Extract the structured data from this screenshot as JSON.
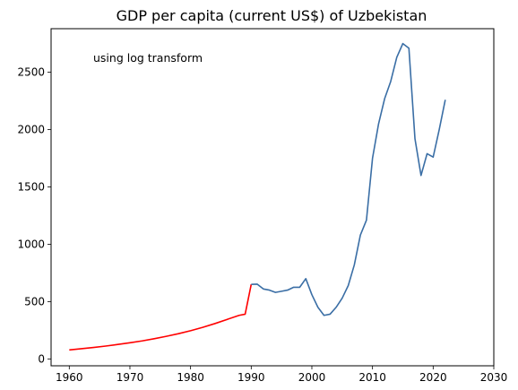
{
  "chart_data": {
    "type": "line",
    "title": "GDP per capita (current US$) of Uzbekistan",
    "annotation": "using log transform",
    "xlabel": "",
    "ylabel": "",
    "xlim": [
      1957,
      2030
    ],
    "ylim": [
      -60,
      2880
    ],
    "xticks": [
      1960,
      1970,
      1980,
      1990,
      2000,
      2010,
      2020,
      2030
    ],
    "yticks": [
      0,
      500,
      1000,
      1500,
      2000,
      2500
    ],
    "grid": false,
    "series": [
      {
        "color": "#ff0000",
        "x": [
          1960,
          1962,
          1964,
          1966,
          1968,
          1970,
          1972,
          1974,
          1976,
          1978,
          1980,
          1982,
          1984,
          1986,
          1988,
          1989,
          1990
        ],
        "y": [
          78,
          89,
          100,
          112,
          126,
          141,
          157,
          176,
          197,
          220,
          246,
          275,
          308,
          344,
          380,
          390,
          650
        ]
      },
      {
        "color": "#3a6ea5",
        "x": [
          1990,
          1991,
          1992,
          1993,
          1994,
          1995,
          1996,
          1997,
          1998,
          1999,
          2000,
          2001,
          2002,
          2003,
          2004,
          2005,
          2006,
          2007,
          2008,
          2009,
          2010,
          2011,
          2012,
          2013,
          2014,
          2015,
          2016,
          2017,
          2018,
          2019,
          2020,
          2021,
          2022
        ],
        "y": [
          650,
          652,
          610,
          600,
          580,
          590,
          600,
          625,
          625,
          700,
          560,
          450,
          380,
          390,
          450,
          530,
          640,
          820,
          1080,
          1210,
          1750,
          2050,
          2270,
          2420,
          2630,
          2750,
          2710,
          1920,
          1600,
          1790,
          1760,
          2000,
          2260
        ]
      }
    ]
  }
}
